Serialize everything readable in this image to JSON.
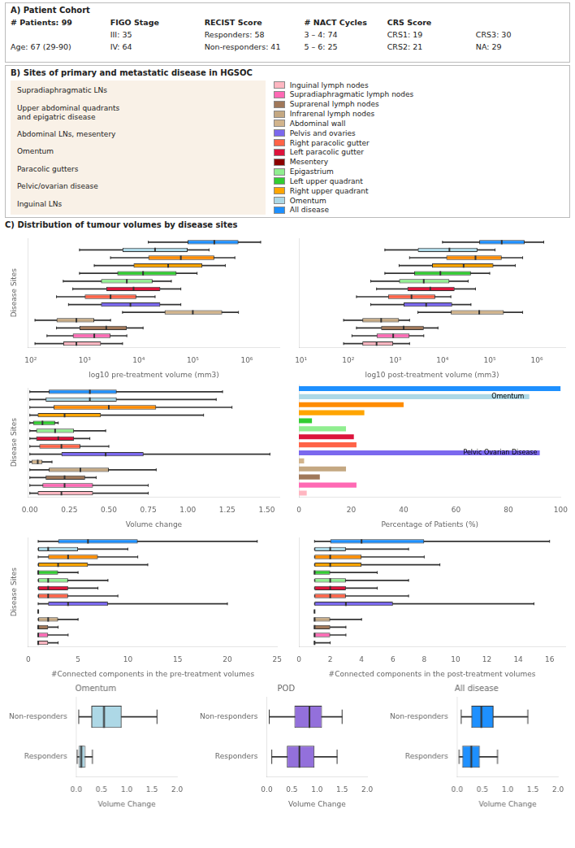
{
  "chart_data": [
    {
      "type": "table",
      "title": "A) Patient Cohort",
      "rows": [
        [
          "# Patients: 99",
          "FIGO Stage",
          "RECIST Score",
          "# NACT Cycles",
          "CRS Score",
          null
        ],
        [
          null,
          "III: 35",
          "Responders: 58",
          "3 – 4: 74",
          "CRS1: 19",
          "CRS3: 30"
        ],
        [
          "Age: 67 (29-90)",
          "IV: 64",
          "Non-responders: 41",
          "5 – 6: 25",
          "CRS2: 21",
          "NA: 29"
        ]
      ]
    },
    {
      "type": "diagram",
      "title": "B) Sites of primary and metastatic disease in HGSOC",
      "annotations": [
        "Supradiaphragmatic LNs",
        "Upper abdominal quadrants\nand epigatric disease",
        "Abdominal LNs, mesentery",
        "Omentum",
        "Paracolic gutters",
        "Pelvic/ovarian disease",
        "Inguinal LNs"
      ],
      "categories": [
        "Inguinal lymph nodes",
        "Supradiaphragmatic lymph nodes",
        "Suprarenal lymph nodes",
        "Infrarenal lymph nodes",
        "Abdominal wall",
        "Pelvis and ovaries",
        "Right paracolic gutter",
        "Left paracolic gutter",
        "Mesentery",
        "Epigastrium",
        "Left upper quadrant",
        "Right upper quadrant",
        "Omentum",
        "All disease"
      ],
      "colors": [
        "#FFB6C1",
        "#FF69B4",
        "#A0785A",
        "#C4A882",
        "#D2B48C",
        "#7B68EE",
        "#FF6347",
        "#DC143C",
        "#8B0000",
        "#90EE90",
        "#32CD32",
        "#FFA500",
        "#ADD8E6",
        "#1E90FF"
      ]
    },
    {
      "type": "heading",
      "title": "C) Distribution of tumour volumes by disease sites"
    },
    {
      "type": "box",
      "orientation": "horizontal",
      "log": "x",
      "grid": false,
      "tick_labels": "x",
      "xlabel": "log10 pre-treatment volume (mm3)",
      "ylabel": "Disease Sites",
      "xlim": [
        90,
        4000000
      ],
      "xticks": [
        {
          "value": 100,
          "label": "10²"
        },
        {
          "value": 1000,
          "label": "10³"
        },
        {
          "value": 10000,
          "label": "10⁴"
        },
        {
          "value": 100000,
          "label": "10⁵"
        },
        {
          "value": 1000000,
          "label": "10⁶"
        }
      ],
      "colors": [
        "#FFB6C1",
        "#FF69B4",
        "#A0785A",
        "#C4A882",
        "#D2B48C",
        "#7B68EE",
        "#FF6347",
        "#DC143C",
        "#90EE90",
        "#32CD32",
        "#FFA500",
        "#FF8C00",
        "#ADD8E6",
        "#1E90FF"
      ],
      "values": [
        {
          "q1": 400,
          "median": 700,
          "q3": 2000,
          "whislo": 120,
          "whishi": 5000
        },
        {
          "q1": 600,
          "median": 1500,
          "q3": 3000,
          "whislo": 200,
          "whishi": 6000
        },
        {
          "q1": 800,
          "median": 2500,
          "q3": 6000,
          "whislo": 300,
          "whishi": 12000
        },
        {
          "q1": 300,
          "median": 700,
          "q3": 1500,
          "whislo": 120,
          "whishi": 3000
        },
        {
          "q1": 30000,
          "median": 100000,
          "q3": 350000,
          "whislo": 5000,
          "whishi": 700000
        },
        {
          "q1": 2000,
          "median": 7000,
          "q3": 25000,
          "whislo": 500,
          "whishi": 60000
        },
        {
          "q1": 1000,
          "median": 3000,
          "q3": 9000,
          "whislo": 300,
          "whishi": 20000
        },
        {
          "q1": 2500,
          "median": 8000,
          "q3": 25000,
          "whislo": 600,
          "whishi": 60000
        },
        {
          "q1": 2000,
          "median": 6000,
          "q3": 18000,
          "whislo": 400,
          "whishi": 40000
        },
        {
          "q1": 4000,
          "median": 12000,
          "q3": 50000,
          "whislo": 800,
          "whishi": 120000
        },
        {
          "q1": 8000,
          "median": 35000,
          "q3": 150000,
          "whislo": 1500,
          "whishi": 400000
        },
        {
          "q1": 15000,
          "median": 60000,
          "q3": 250000,
          "whislo": 3000,
          "whishi": 600000
        },
        {
          "q1": 5000,
          "median": 20000,
          "q3": 80000,
          "whislo": 800,
          "whishi": 200000
        },
        {
          "q1": 80000,
          "median": 250000,
          "q3": 700000,
          "whislo": 15000,
          "whishi": 1800000
        }
      ]
    },
    {
      "type": "box",
      "orientation": "horizontal",
      "log": "x",
      "grid": false,
      "tick_labels": "x",
      "xlabel": "log10 post-treatment volume (mm3)",
      "xlim": [
        9,
        4000000
      ],
      "xticks": [
        {
          "value": 10,
          "label": "10¹"
        },
        {
          "value": 100,
          "label": "10²"
        },
        {
          "value": 1000,
          "label": "10³"
        },
        {
          "value": 10000,
          "label": "10⁴"
        },
        {
          "value": 100000,
          "label": "10⁵"
        },
        {
          "value": 1000000,
          "label": "10⁶"
        }
      ],
      "colors": [
        "#FFB6C1",
        "#FF69B4",
        "#A0785A",
        "#C4A882",
        "#D2B48C",
        "#7B68EE",
        "#FF6347",
        "#DC143C",
        "#90EE90",
        "#32CD32",
        "#FFA500",
        "#FF8C00",
        "#ADD8E6",
        "#1E90FF"
      ],
      "values": [
        {
          "q1": 200,
          "median": 400,
          "q3": 900,
          "whislo": 80,
          "whishi": 2000
        },
        {
          "q1": 400,
          "median": 900,
          "q3": 2000,
          "whislo": 120,
          "whishi": 4000
        },
        {
          "q1": 500,
          "median": 1500,
          "q3": 4000,
          "whislo": 150,
          "whishi": 8000
        },
        {
          "q1": 200,
          "median": 500,
          "q3": 1200,
          "whislo": 80,
          "whishi": 2000
        },
        {
          "q1": 15000,
          "median": 60000,
          "q3": 200000,
          "whislo": 3000,
          "whishi": 500000
        },
        {
          "q1": 1500,
          "median": 4500,
          "q3": 16000,
          "whislo": 300,
          "whishi": 40000
        },
        {
          "q1": 700,
          "median": 2200,
          "q3": 7000,
          "whislo": 150,
          "whishi": 15000
        },
        {
          "q1": 1800,
          "median": 5500,
          "q3": 18000,
          "whislo": 400,
          "whishi": 50000
        },
        {
          "q1": 1200,
          "median": 4000,
          "q3": 14000,
          "whislo": 300,
          "whishi": 35000
        },
        {
          "q1": 2500,
          "median": 9000,
          "q3": 40000,
          "whislo": 600,
          "whishi": 100000
        },
        {
          "q1": 6000,
          "median": 28000,
          "q3": 120000,
          "whislo": 1200,
          "whishi": 350000
        },
        {
          "q1": 12000,
          "median": 50000,
          "q3": 180000,
          "whislo": 2000,
          "whishi": 500000
        },
        {
          "q1": 3000,
          "median": 14000,
          "q3": 55000,
          "whislo": 600,
          "whishi": 130000
        },
        {
          "q1": 60000,
          "median": 180000,
          "q3": 550000,
          "whislo": 10000,
          "whishi": 1400000
        }
      ]
    },
    {
      "type": "box",
      "orientation": "horizontal",
      "grid": false,
      "tick_labels": "x",
      "xlabel": "Volume change",
      "ylabel": "Disease Sites",
      "xlim": [
        -0.01,
        1.58
      ],
      "xticks": [
        {
          "value": 0,
          "label": "0.00"
        },
        0.25,
        {
          "value": 0.5,
          "label": "0.50"
        },
        0.75,
        {
          "value": 1,
          "label": "1.00"
        },
        1.25,
        {
          "value": 1.5,
          "label": "1.50"
        }
      ],
      "colors": [
        "#FFB6C1",
        "#FF69B4",
        "#A0785A",
        "#C4A882",
        "#D2B48C",
        "#7B68EE",
        "#FF6347",
        "#DC143C",
        "#90EE90",
        "#32CD32",
        "#FFA500",
        "#FF8C00",
        "#ADD8E6",
        "#1E90FF"
      ],
      "values": [
        {
          "q1": 0.05,
          "median": 0.2,
          "q3": 0.4,
          "whislo": 0.0,
          "whishi": 0.75
        },
        {
          "q1": 0.08,
          "median": 0.22,
          "q3": 0.4,
          "whislo": 0.0,
          "whishi": 0.75
        },
        {
          "q1": 0.1,
          "median": 0.22,
          "q3": 0.35,
          "whislo": 0.0,
          "whishi": 0.42
        },
        {
          "q1": 0.12,
          "median": 0.32,
          "q3": 0.5,
          "whislo": 0.0,
          "whishi": 0.8
        },
        {
          "q1": 0.01,
          "median": 0.05,
          "q3": 0.08,
          "whislo": 0.0,
          "whishi": 0.14
        },
        {
          "q1": 0.2,
          "median": 0.48,
          "q3": 0.72,
          "whislo": 0.0,
          "whishi": 1.52
        },
        {
          "q1": 0.06,
          "median": 0.2,
          "q3": 0.32,
          "whislo": 0.0,
          "whishi": 0.5
        },
        {
          "q1": 0.04,
          "median": 0.18,
          "q3": 0.28,
          "whislo": 0.0,
          "whishi": 0.38
        },
        {
          "q1": 0.04,
          "median": 0.16,
          "q3": 0.28,
          "whislo": 0.0,
          "whishi": 0.48
        },
        {
          "q1": 0.02,
          "median": 0.08,
          "q3": 0.16,
          "whislo": 0.0,
          "whishi": 0.18
        },
        {
          "q1": 0.05,
          "median": 0.22,
          "q3": 0.45,
          "whislo": 0.0,
          "whishi": 1.1
        },
        {
          "q1": 0.15,
          "median": 0.5,
          "q3": 0.8,
          "whislo": 0.0,
          "whishi": 1.28
        },
        {
          "q1": 0.1,
          "median": 0.38,
          "q3": 0.55,
          "whislo": 0.0,
          "whishi": 1.18
        },
        {
          "q1": 0.12,
          "median": 0.38,
          "q3": 0.55,
          "whislo": 0.0,
          "whishi": 1.22
        }
      ]
    },
    {
      "type": "bar",
      "orientation": "horizontal",
      "grid": false,
      "tick_labels": "x",
      "xlabel": "Percentage of Patients (%)",
      "xlim": [
        0,
        100
      ],
      "xticks": [
        0,
        20,
        40,
        60,
        80,
        100
      ],
      "colors": [
        "#FFB6C1",
        "#FF69B4",
        "#A0785A",
        "#C4A882",
        "#D2B48C",
        "#7B68EE",
        "#FF6347",
        "#DC143C",
        "#90EE90",
        "#32CD32",
        "#FFA500",
        "#FF8C00",
        "#ADD8E6",
        "#1E90FF"
      ],
      "values": [
        3,
        22,
        8,
        18,
        2,
        92,
        22,
        21,
        18,
        5,
        25,
        40,
        88,
        100
      ],
      "annotations": [
        {
          "text": "Pelvic Ovarian Disease",
          "x": 91,
          "y": 5
        },
        {
          "text": "Omentum",
          "x": 86,
          "y": 12
        }
      ]
    },
    {
      "type": "box",
      "orientation": "horizontal",
      "grid": false,
      "tick_labels": "x",
      "xlabel": "#Connected components in the pre-treatment volumes",
      "ylabel": "Disease Sites",
      "xlim": [
        0,
        25
      ],
      "xticks": [
        0,
        5,
        10,
        15,
        20,
        25
      ],
      "colors": [
        "#FFB6C1",
        "#FF69B4",
        "#A0785A",
        "#C4A882",
        "#D2B48C",
        "#7B68EE",
        "#FF6347",
        "#DC143C",
        "#90EE90",
        "#32CD32",
        "#FFA500",
        "#FF8C00",
        "#ADD8E6",
        "#1E90FF"
      ],
      "values": [
        {
          "q1": 1,
          "median": 1,
          "q3": 2,
          "whislo": 1,
          "whishi": 3
        },
        {
          "q1": 1,
          "median": 1,
          "q3": 2,
          "whislo": 1,
          "whishi": 4
        },
        {
          "q1": 1,
          "median": 1,
          "q3": 2,
          "whislo": 1,
          "whishi": 3
        },
        {
          "q1": 1,
          "median": 2,
          "q3": 3,
          "whislo": 1,
          "whishi": 5
        },
        {
          "q1": 1,
          "median": 1,
          "q3": 1,
          "whislo": 1,
          "whishi": 1
        },
        {
          "q1": 2,
          "median": 4,
          "q3": 8,
          "whislo": 1,
          "whishi": 20
        },
        {
          "q1": 1,
          "median": 2,
          "q3": 4,
          "whislo": 1,
          "whishi": 9
        },
        {
          "q1": 1,
          "median": 2,
          "q3": 4,
          "whislo": 1,
          "whishi": 7
        },
        {
          "q1": 1,
          "median": 2,
          "q3": 4,
          "whislo": 1,
          "whishi": 8
        },
        {
          "q1": 1,
          "median": 1,
          "q3": 3,
          "whislo": 1,
          "whishi": 5
        },
        {
          "q1": 1,
          "median": 3,
          "q3": 6,
          "whislo": 1,
          "whishi": 12
        },
        {
          "q1": 2,
          "median": 4,
          "q3": 7,
          "whislo": 1,
          "whishi": 11
        },
        {
          "q1": 1,
          "median": 2,
          "q3": 5,
          "whislo": 1,
          "whishi": 10
        },
        {
          "q1": 3,
          "median": 6,
          "q3": 11,
          "whislo": 1,
          "whishi": 23
        }
      ]
    },
    {
      "type": "box",
      "orientation": "horizontal",
      "grid": false,
      "tick_labels": "x",
      "xlabel": "#Connected components in the post-treatment volumes",
      "xlim": [
        0,
        17
      ],
      "xticks": [
        0,
        2,
        4,
        6,
        8,
        10,
        12,
        14,
        16
      ],
      "colors": [
        "#FFB6C1",
        "#FF69B4",
        "#A0785A",
        "#C4A882",
        "#D2B48C",
        "#7B68EE",
        "#FF6347",
        "#DC143C",
        "#90EE90",
        "#32CD32",
        "#FFA500",
        "#FF8C00",
        "#ADD8E6",
        "#1E90FF"
      ],
      "values": [
        {
          "q1": 1,
          "median": 1,
          "q3": 1,
          "whislo": 1,
          "whishi": 2
        },
        {
          "q1": 1,
          "median": 1,
          "q3": 2,
          "whislo": 1,
          "whishi": 3
        },
        {
          "q1": 1,
          "median": 1,
          "q3": 2,
          "whislo": 1,
          "whishi": 3
        },
        {
          "q1": 1,
          "median": 1,
          "q3": 2,
          "whislo": 1,
          "whishi": 4
        },
        {
          "q1": 1,
          "median": 1,
          "q3": 1,
          "whislo": 1,
          "whishi": 1
        },
        {
          "q1": 1,
          "median": 3,
          "q3": 6,
          "whislo": 1,
          "whishi": 15
        },
        {
          "q1": 1,
          "median": 2,
          "q3": 3,
          "whislo": 1,
          "whishi": 7
        },
        {
          "q1": 1,
          "median": 2,
          "q3": 3,
          "whislo": 1,
          "whishi": 5
        },
        {
          "q1": 1,
          "median": 2,
          "q3": 3,
          "whislo": 1,
          "whishi": 7
        },
        {
          "q1": 1,
          "median": 1,
          "q3": 2,
          "whislo": 1,
          "whishi": 5
        },
        {
          "q1": 1,
          "median": 2,
          "q3": 4,
          "whislo": 1,
          "whishi": 9
        },
        {
          "q1": 1,
          "median": 2,
          "q3": 4,
          "whislo": 1,
          "whishi": 8
        },
        {
          "q1": 1,
          "median": 2,
          "q3": 3,
          "whislo": 1,
          "whishi": 7
        },
        {
          "q1": 2,
          "median": 4,
          "q3": 8,
          "whislo": 1,
          "whishi": 16
        }
      ]
    },
    {
      "type": "box",
      "orientation": "horizontal",
      "grid": false,
      "title": "Omentum",
      "xlabel": "Volume Change",
      "xlim": [
        0,
        2
      ],
      "xticks": [
        {
          "value": 0,
          "label": "0.0"
        },
        0.5,
        {
          "value": 1,
          "label": "1.0"
        },
        1.5,
        {
          "value": 2,
          "label": "2.0"
        }
      ],
      "categories": [
        "Responders",
        "Non-responders"
      ],
      "color": "#ADD8E6",
      "values": [
        {
          "q1": 0.05,
          "median": 0.1,
          "q3": 0.18,
          "whislo": 0.02,
          "whishi": 0.32
        },
        {
          "q1": 0.3,
          "median": 0.55,
          "q3": 0.9,
          "whislo": 0.05,
          "whishi": 1.6
        }
      ]
    },
    {
      "type": "box",
      "orientation": "horizontal",
      "grid": false,
      "title": "POD",
      "xlabel": "Volume Change",
      "xlim": [
        0,
        2
      ],
      "xticks": [
        {
          "value": 0,
          "label": "0.0"
        },
        0.5,
        {
          "value": 1,
          "label": "1.0"
        },
        1.5,
        {
          "value": 2,
          "label": "2.0"
        }
      ],
      "categories": [
        "Responders",
        "Non-responders"
      ],
      "color": "#9370DB",
      "values": [
        {
          "q1": 0.4,
          "median": 0.65,
          "q3": 0.95,
          "whislo": 0.1,
          "whishi": 1.4
        },
        {
          "q1": 0.55,
          "median": 0.85,
          "q3": 1.1,
          "whislo": 0.05,
          "whishi": 1.5
        }
      ]
    },
    {
      "type": "box",
      "orientation": "horizontal",
      "grid": false,
      "title": "All disease",
      "xlabel": "Volume Change",
      "xlim": [
        0,
        2
      ],
      "xticks": [
        {
          "value": 0,
          "label": "0.0"
        },
        0.5,
        {
          "value": 1,
          "label": "1.0"
        },
        1.5,
        {
          "value": 2,
          "label": "2.0"
        }
      ],
      "categories": [
        "Responders",
        "Non-responders"
      ],
      "color": "#1E90FF",
      "values": [
        {
          "q1": 0.1,
          "median": 0.28,
          "q3": 0.45,
          "whislo": 0.04,
          "whishi": 0.8
        },
        {
          "q1": 0.28,
          "median": 0.48,
          "q3": 0.72,
          "whislo": 0.08,
          "whishi": 1.4
        }
      ]
    }
  ]
}
